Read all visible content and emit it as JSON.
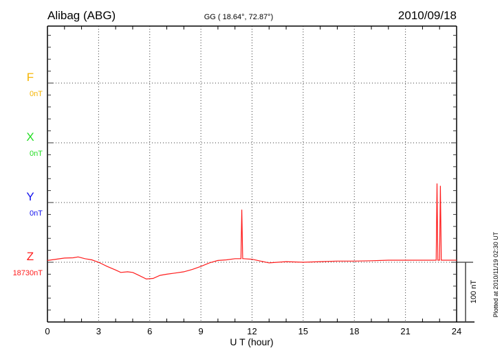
{
  "header": {
    "station": "Alibag (ABG)",
    "coords": "GG ( 18.64°,  72.87°)",
    "date": "2010/09/18"
  },
  "footer": {
    "plotted": "Plotted at 2010/11/19 02:30 UT"
  },
  "chart_data": {
    "type": "line",
    "title": "Alibag (ABG)",
    "xlabel": "U T (hour)",
    "ylabel": "",
    "xlim": [
      0,
      24
    ],
    "x_ticks": [
      0,
      3,
      6,
      9,
      12,
      15,
      18,
      21,
      24
    ],
    "x_tick_labels": [
      "0",
      "3",
      "6",
      "9",
      "12",
      "15",
      "18",
      "21",
      "24"
    ],
    "y_range_nT_relative_to_Z_baseline": [
      -100,
      395
    ],
    "grid": true,
    "scale_bar": {
      "label": "100 nT",
      "value_nT": 100
    },
    "channels": [
      {
        "name": "F",
        "baseline_label": "0nT",
        "color": "#f5b400",
        "offset_nT": 300
      },
      {
        "name": "X",
        "baseline_label": "0nT",
        "color": "#22dd22",
        "offset_nT": 200
      },
      {
        "name": "Y",
        "baseline_label": "0nT",
        "color": "#1010ee",
        "offset_nT": 100
      },
      {
        "name": "Z",
        "baseline_label": "18730nT",
        "color": "#ff1a1a",
        "offset_nT": 0
      }
    ],
    "series": [
      {
        "name": "Z",
        "unit": "nT (relative to 18730 nT)",
        "x": [
          0,
          0.5,
          1,
          1.5,
          1.8,
          2.2,
          2.6,
          3,
          3.5,
          4,
          4.3,
          4.7,
          5,
          5.3,
          5.8,
          6.2,
          6.6,
          7,
          7.5,
          8,
          8.5,
          9,
          9.5,
          10,
          10.5,
          11,
          11.35,
          11.4,
          11.45,
          11.5,
          12,
          12.5,
          13,
          13.5,
          14,
          15,
          16,
          17,
          18,
          19,
          20,
          21,
          22,
          22.8,
          22.85,
          22.9,
          22.95,
          23.0,
          23.05,
          23.1,
          23.15,
          24
        ],
        "values": [
          3,
          5,
          7,
          7.5,
          9,
          6,
          4,
          0,
          -7,
          -13,
          -17,
          -16,
          -17,
          -21,
          -28,
          -27,
          -22,
          -20,
          -18,
          -16,
          -12,
          -7,
          -1,
          3,
          4,
          6,
          6,
          88,
          6,
          6,
          5,
          2,
          -1,
          0,
          1,
          0,
          1,
          2,
          2,
          2.5,
          3.5,
          3.5,
          3.5,
          3.5,
          132,
          3.5,
          3.5,
          3.5,
          128,
          3.5,
          3.5,
          3.5
        ]
      }
    ]
  }
}
